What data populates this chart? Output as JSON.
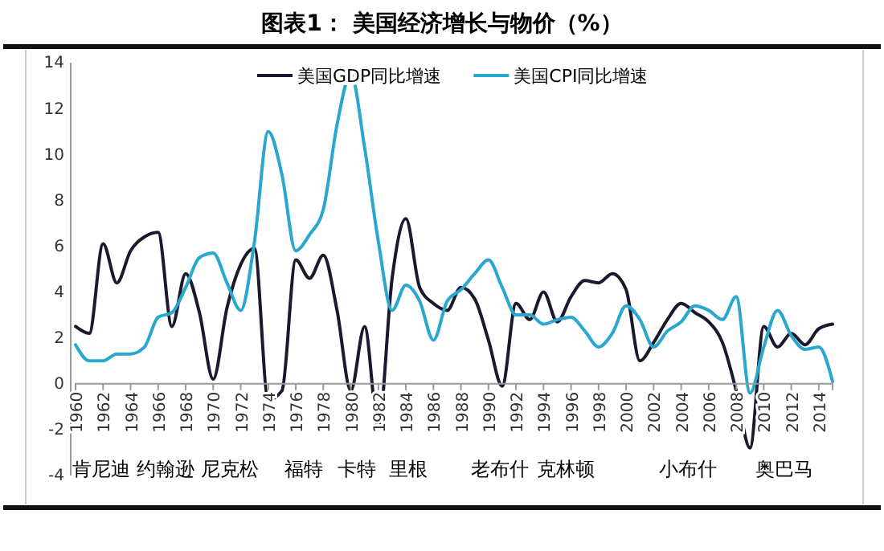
{
  "chart_data": {
    "type": "line",
    "title": "图表1：  美国经济增长与物价（%）",
    "x": [
      1960,
      1961,
      1962,
      1963,
      1964,
      1965,
      1966,
      1967,
      1968,
      1969,
      1970,
      1971,
      1972,
      1973,
      1974,
      1975,
      1976,
      1977,
      1978,
      1979,
      1980,
      1981,
      1982,
      1983,
      1984,
      1985,
      1986,
      1987,
      1988,
      1989,
      1990,
      1991,
      1992,
      1993,
      1994,
      1995,
      1996,
      1997,
      1998,
      1999,
      2000,
      2001,
      2002,
      2003,
      2004,
      2005,
      2006,
      2007,
      2008,
      2009,
      2010,
      2011,
      2012,
      2013,
      2014,
      2015
    ],
    "series": [
      {
        "name": "美国GDP同比增速",
        "color": "#1a1a2e",
        "values": [
          2.5,
          2.2,
          6.1,
          4.4,
          5.8,
          6.4,
          6.6,
          2.5,
          4.8,
          3.1,
          0.2,
          3.3,
          5.2,
          5.9,
          -0.7,
          -0.3,
          5.4,
          4.6,
          5.6,
          3.2,
          -0.3,
          2.5,
          -1.9,
          4.6,
          7.2,
          4.2,
          3.5,
          3.2,
          4.2,
          3.7,
          1.9,
          -0.1,
          3.5,
          2.8,
          4.0,
          2.7,
          3.8,
          4.5,
          4.4,
          4.8,
          4.1,
          1.0,
          1.8,
          2.8,
          3.5,
          3.1,
          2.7,
          1.8,
          -0.3,
          -2.8,
          2.5,
          1.6,
          2.2,
          1.7,
          2.4,
          2.6
        ]
      },
      {
        "name": "美国CPI同比增速",
        "color": "#2aa7cf",
        "values": [
          1.7,
          1.0,
          1.0,
          1.3,
          1.3,
          1.6,
          2.9,
          3.1,
          4.2,
          5.5,
          5.7,
          4.4,
          3.2,
          6.2,
          11.0,
          9.1,
          5.8,
          6.5,
          7.6,
          11.3,
          13.5,
          10.3,
          6.2,
          3.2,
          4.3,
          3.6,
          1.9,
          3.6,
          4.1,
          4.8,
          5.4,
          4.2,
          3.0,
          3.0,
          2.6,
          2.8,
          2.9,
          2.3,
          1.6,
          2.2,
          3.4,
          2.8,
          1.6,
          2.3,
          2.7,
          3.4,
          3.2,
          2.8,
          3.8,
          -0.4,
          1.6,
          3.2,
          2.1,
          1.5,
          1.6,
          0.1
        ]
      }
    ],
    "xlim": [
      1960,
      2015
    ],
    "xticks": [
      1960,
      1962,
      1964,
      1966,
      1968,
      1970,
      1972,
      1974,
      1976,
      1978,
      1980,
      1982,
      1984,
      1986,
      1988,
      1990,
      1992,
      1994,
      1996,
      1998,
      2000,
      2002,
      2004,
      2006,
      2008,
      2010,
      2012,
      2014
    ],
    "ylim": [
      -4,
      14
    ],
    "yticks": [
      -4,
      -2,
      0,
      2,
      4,
      6,
      8,
      10,
      12,
      14
    ],
    "grid": false,
    "legend": "top",
    "marker": "none",
    "line_style": "solid",
    "annotations": [
      "肯尼迪",
      "约翰逊",
      "尼克松",
      "福特",
      "卡特",
      "里根",
      "老布什",
      "克林顿",
      "小布什",
      "奥巴马"
    ]
  }
}
